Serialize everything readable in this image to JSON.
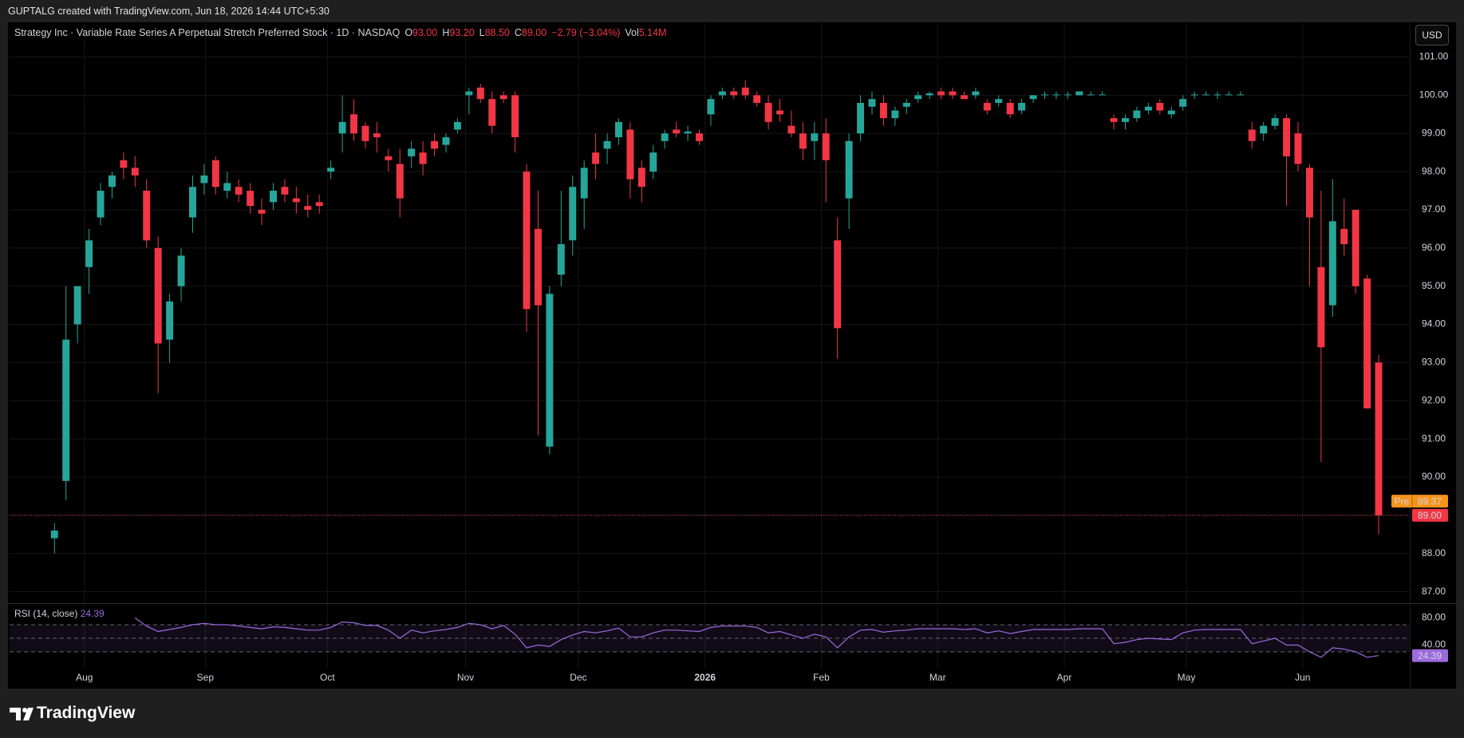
{
  "header": {
    "caption": "GUPTALG created with TradingView.com, Jun 18, 2026 14:44 UTC+5:30",
    "currency": "USD",
    "brand": "TradingView"
  },
  "chart_data": {
    "type": "candlestick",
    "title": "Strategy Inc · Variable Rate Series A Perpetual Stretch Preferred Stock · 1D · NASDAQ",
    "legend": [
      {
        "key": "O",
        "value": "93.00"
      },
      {
        "key": "H",
        "value": "93.20"
      },
      {
        "key": "L",
        "value": "88.50"
      },
      {
        "key": "C",
        "value": "89.00"
      }
    ],
    "change": "−2.79 (−3.04%)",
    "volume": {
      "key": "Vol",
      "value": "5.14M"
    },
    "up_color": "#26a69a",
    "down_color": "#f23645",
    "ohlc": [
      [
        88.4,
        88.8,
        88,
        88.6
      ],
      [
        89.9,
        95,
        89.4,
        93.6
      ],
      [
        94,
        95,
        93.5,
        95
      ],
      [
        95.5,
        96.5,
        94.8,
        96.2
      ],
      [
        96.8,
        97.7,
        96.6,
        97.5
      ],
      [
        97.6,
        98,
        97.3,
        97.9
      ],
      [
        98.3,
        98.5,
        97.8,
        98.1
      ],
      [
        98.1,
        98.4,
        97.6,
        97.9
      ],
      [
        97.5,
        97.8,
        96,
        96.2
      ],
      [
        96,
        96.3,
        92.2,
        93.5
      ],
      [
        93.6,
        94.8,
        93,
        94.6
      ],
      [
        95,
        96,
        94.6,
        95.8
      ],
      [
        96.8,
        97.9,
        96.4,
        97.6
      ],
      [
        97.7,
        98.2,
        97.4,
        97.9
      ],
      [
        98.3,
        98.4,
        97.4,
        97.6
      ],
      [
        97.5,
        98,
        97.3,
        97.7
      ],
      [
        97.6,
        97.8,
        97.2,
        97.4
      ],
      [
        97.5,
        97.7,
        96.9,
        97.1
      ],
      [
        97,
        97.3,
        96.6,
        96.9
      ],
      [
        97.2,
        97.7,
        97,
        97.5
      ],
      [
        97.6,
        97.8,
        97.2,
        97.4
      ],
      [
        97.3,
        97.6,
        96.9,
        97.2
      ],
      [
        97.1,
        97.4,
        96.8,
        97
      ],
      [
        97.2,
        97.4,
        96.9,
        97.1
      ],
      [
        98,
        98.3,
        97.8,
        98.1
      ],
      [
        99,
        100,
        98.5,
        99.3
      ],
      [
        99.5,
        99.9,
        98.8,
        99
      ],
      [
        99.2,
        99.3,
        98.6,
        98.8
      ],
      [
        99,
        99.3,
        98.5,
        98.9
      ],
      [
        98.4,
        98.6,
        98,
        98.3
      ],
      [
        98.2,
        98.6,
        96.8,
        97.3
      ],
      [
        98.4,
        98.8,
        98.1,
        98.6
      ],
      [
        98.5,
        98.8,
        97.9,
        98.2
      ],
      [
        98.8,
        99,
        98.4,
        98.6
      ],
      [
        98.7,
        99,
        98.5,
        98.9
      ],
      [
        99.1,
        99.4,
        99,
        99.3
      ],
      [
        100,
        100.2,
        99.5,
        100.1
      ],
      [
        100.2,
        100.3,
        99.8,
        99.9
      ],
      [
        99.9,
        100.1,
        99,
        99.2
      ],
      [
        100,
        100.1,
        99.8,
        99.9
      ],
      [
        100,
        100.1,
        98.5,
        98.9
      ],
      [
        98,
        98.2,
        93.8,
        94.4
      ],
      [
        96.5,
        97.5,
        91.1,
        94.5
      ],
      [
        90.8,
        95,
        90.6,
        94.8
      ],
      [
        95.3,
        97.5,
        95,
        96.1
      ],
      [
        96.2,
        97.9,
        95.8,
        97.6
      ],
      [
        97.3,
        98.3,
        96.5,
        98.1
      ],
      [
        98.5,
        99,
        97.8,
        98.2
      ],
      [
        98.6,
        99,
        98.2,
        98.8
      ],
      [
        98.9,
        99.4,
        98.7,
        99.3
      ],
      [
        99.1,
        99.3,
        97.3,
        97.8
      ],
      [
        98.1,
        98.3,
        97.2,
        97.6
      ],
      [
        98,
        98.7,
        97.8,
        98.5
      ],
      [
        98.8,
        99.1,
        98.6,
        99
      ],
      [
        99.1,
        99.3,
        98.9,
        99
      ],
      [
        99,
        99.2,
        98.8,
        99.05
      ],
      [
        99,
        99.1,
        98.7,
        98.8
      ],
      [
        99.5,
        100,
        99.2,
        99.9
      ],
      [
        100,
        100.2,
        99.9,
        100.1
      ],
      [
        100.1,
        100.2,
        99.9,
        100
      ],
      [
        100.2,
        100.4,
        99.9,
        100
      ],
      [
        100,
        100.1,
        99.7,
        99.8
      ],
      [
        99.8,
        100,
        99.1,
        99.3
      ],
      [
        99.6,
        99.9,
        99.3,
        99.5
      ],
      [
        99.2,
        99.6,
        98.9,
        99
      ],
      [
        99,
        99.3,
        98.3,
        98.6
      ],
      [
        98.8,
        99.3,
        98.3,
        99
      ],
      [
        99,
        99.4,
        97.2,
        98.3
      ],
      [
        96.2,
        96.8,
        93.1,
        93.9
      ],
      [
        97.3,
        99,
        96.5,
        98.8
      ],
      [
        99,
        100,
        98.8,
        99.8
      ],
      [
        99.7,
        100.1,
        99.5,
        99.9
      ],
      [
        99.8,
        100,
        99.2,
        99.4
      ],
      [
        99.4,
        99.7,
        99.2,
        99.6
      ],
      [
        99.7,
        99.9,
        99.5,
        99.8
      ],
      [
        99.9,
        100.1,
        99.8,
        100
      ],
      [
        100,
        100.1,
        99.9,
        100.05
      ],
      [
        100.1,
        100.2,
        99.9,
        100
      ],
      [
        100.1,
        100.2,
        99.9,
        100
      ],
      [
        100,
        100.1,
        99.9,
        99.9
      ],
      [
        100,
        100.2,
        99.9,
        100.1
      ],
      [
        99.8,
        99.9,
        99.5,
        99.6
      ],
      [
        99.8,
        100,
        99.7,
        99.9
      ],
      [
        99.8,
        99.9,
        99.4,
        99.5
      ],
      [
        99.6,
        99.9,
        99.5,
        99.8
      ],
      [
        99.9,
        100,
        99.8,
        100
      ],
      [
        100,
        100.1,
        99.9,
        100.02
      ],
      [
        100,
        100.1,
        99.9,
        100.02
      ],
      [
        100,
        100.1,
        99.9,
        100.02
      ],
      [
        100,
        100.1,
        100,
        100.1
      ],
      [
        100,
        100.1,
        100,
        100.02
      ],
      [
        100,
        100.1,
        100,
        100.02
      ],
      [
        99.4,
        99.5,
        99.1,
        99.3
      ],
      [
        99.3,
        99.5,
        99.1,
        99.4
      ],
      [
        99.4,
        99.7,
        99.3,
        99.6
      ],
      [
        99.6,
        99.8,
        99.5,
        99.7
      ],
      [
        99.8,
        99.9,
        99.5,
        99.6
      ],
      [
        99.5,
        99.7,
        99.4,
        99.6
      ],
      [
        99.7,
        100,
        99.6,
        99.9
      ],
      [
        100,
        100.1,
        99.9,
        100.02
      ],
      [
        100,
        100.1,
        100,
        100.02
      ],
      [
        100,
        100.1,
        99.9,
        100.02
      ],
      [
        100,
        100.1,
        100,
        100.02
      ],
      [
        100,
        100.1,
        100,
        100.02
      ],
      [
        99.1,
        99.3,
        98.6,
        98.8
      ],
      [
        99,
        99.3,
        98.8,
        99.2
      ],
      [
        99.2,
        99.5,
        99.1,
        99.4
      ],
      [
        99.4,
        99.5,
        97.1,
        98.4
      ],
      [
        99,
        99.3,
        98,
        98.2
      ],
      [
        98.1,
        98.2,
        95,
        96.8
      ],
      [
        95.5,
        97.5,
        90.4,
        93.4
      ],
      [
        94.5,
        97.8,
        94.2,
        96.7
      ],
      [
        96.5,
        97.3,
        95.8,
        96.1
      ],
      [
        97,
        97,
        94.8,
        95
      ],
      [
        95.2,
        95.3,
        91.8,
        91.8
      ],
      [
        93,
        93.2,
        88.5,
        89
      ]
    ],
    "xlim": [
      -3.9,
      117.7
    ],
    "xticks": [
      {
        "value": 2.6,
        "label": "Aug"
      },
      {
        "value": 13.1,
        "label": "Sep"
      },
      {
        "value": 23.7,
        "label": "Oct"
      },
      {
        "value": 35.7,
        "label": "Nov"
      },
      {
        "value": 45.5,
        "label": "Dec"
      },
      {
        "value": 56.5,
        "label": "2026"
      },
      {
        "value": 66.6,
        "label": "Feb"
      },
      {
        "value": 76.7,
        "label": "Mar"
      },
      {
        "value": 87.7,
        "label": "Apr"
      },
      {
        "value": 98.3,
        "label": "May"
      },
      {
        "value": 108.4,
        "label": "Jun"
      }
    ],
    "ylim": [
      86.72,
      101.93
    ],
    "yticks": [
      {
        "value": 87,
        "label": "87.00"
      },
      {
        "value": 88,
        "label": "88.00"
      },
      {
        "value": 89,
        "label": "89.00"
      },
      {
        "value": 90,
        "label": "90.00"
      },
      {
        "value": 91,
        "label": "91.00"
      },
      {
        "value": 92,
        "label": "92.00"
      },
      {
        "value": 93,
        "label": "93.00"
      },
      {
        "value": 94,
        "label": "94.00"
      },
      {
        "value": 95,
        "label": "95.00"
      },
      {
        "value": 96,
        "label": "96.00"
      },
      {
        "value": 97,
        "label": "97.00"
      },
      {
        "value": 98,
        "label": "98.00"
      },
      {
        "value": 99,
        "label": "99.00"
      },
      {
        "value": 100,
        "label": "100.00"
      },
      {
        "value": 101,
        "label": "101.00"
      }
    ],
    "grid": true,
    "last_price": {
      "value": 89,
      "label": "89.00"
    },
    "premarket": {
      "name": "Pre",
      "value": 89.37,
      "color": "#f7931a"
    },
    "indicator": {
      "type": "line",
      "title": "RSI (14, close)",
      "color": "#9c6ade",
      "values": [
        null,
        null,
        null,
        null,
        null,
        null,
        null,
        80,
        68,
        60,
        63,
        66,
        70,
        72,
        70,
        70,
        68,
        66,
        64,
        67,
        66,
        64,
        62,
        62,
        66,
        74,
        73,
        69,
        69,
        62,
        50,
        62,
        58,
        61,
        63,
        66,
        72,
        70,
        64,
        69,
        56,
        36,
        40,
        38,
        48,
        55,
        60,
        58,
        61,
        65,
        52,
        52,
        58,
        62,
        62,
        61,
        60,
        66,
        68,
        68,
        68,
        66,
        58,
        60,
        55,
        50,
        56,
        52,
        36,
        52,
        62,
        63,
        59,
        61,
        62,
        64,
        64,
        64,
        64,
        63,
        64,
        58,
        61,
        57,
        60,
        63,
        63,
        63,
        63,
        64,
        64,
        64,
        42,
        44,
        48,
        50,
        49,
        48,
        58,
        62,
        63,
        63,
        63,
        63,
        42,
        46,
        50,
        40,
        40,
        30,
        22,
        36,
        34,
        30,
        22,
        24.39
      ],
      "ylim": [
        6.4,
        99.5
      ],
      "yticks": [
        {
          "value": 80,
          "label": "80.00"
        },
        {
          "value": 40,
          "label": "40.00"
        }
      ],
      "bands": [
        70,
        50,
        30
      ]
    }
  }
}
